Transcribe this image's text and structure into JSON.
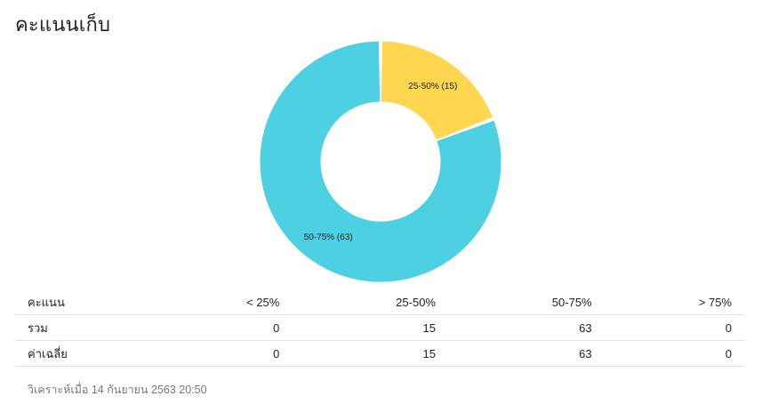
{
  "page": {
    "title": "คะแนนเก็บ",
    "footer": "วิเคราะห์เมื่อ 14 กันยายน 2563 20:50"
  },
  "chart_data": {
    "type": "pie",
    "style": "donut",
    "labels": [
      "25-50%",
      "50-75%"
    ],
    "values": [
      15,
      63
    ],
    "slice_labels": [
      "25-50% (15)",
      "50-75% (63)"
    ],
    "colors": [
      "#fed650",
      "#4dd0e1"
    ]
  },
  "table": {
    "headers": [
      "คะแนน",
      "< 25%",
      "25-50%",
      "50-75%",
      "> 75%"
    ],
    "rows": [
      {
        "label": "รวม",
        "values": [
          "0",
          "15",
          "63",
          "0"
        ]
      },
      {
        "label": "ค่าเฉลี่ย",
        "values": [
          "0",
          "15",
          "63",
          "0"
        ]
      }
    ]
  }
}
